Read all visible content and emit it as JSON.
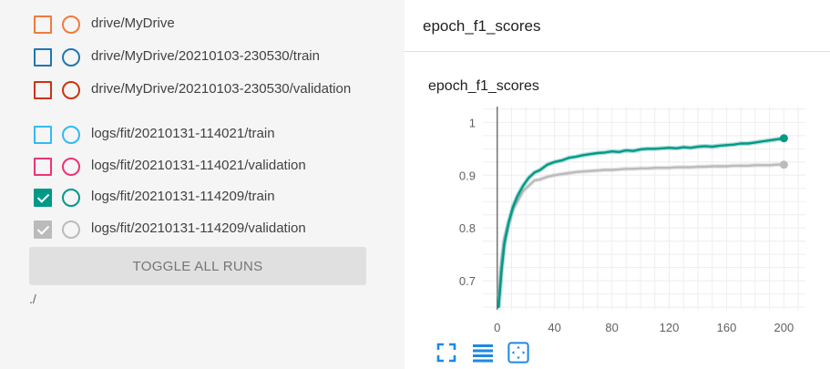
{
  "runs": [
    {
      "label": "drive/MyDrive",
      "color": "#f4793e",
      "checked": false
    },
    {
      "label": "drive/MyDrive/20210103-230530/train",
      "color": "#1f77b4",
      "checked": false
    },
    {
      "label": "drive/MyDrive/20210103-230530/validation",
      "color": "#cc3311",
      "checked": false
    },
    {
      "label": "logs/fit/20210131-114021/train",
      "color": "#33bbee",
      "checked": false
    },
    {
      "label": "logs/fit/20210131-114021/validation",
      "color": "#ee3377",
      "checked": false
    },
    {
      "label": "logs/fit/20210131-114209/train",
      "color": "#009988",
      "checked": true
    },
    {
      "label": "logs/fit/20210131-114209/validation",
      "color": "#bbbbbb",
      "checked": true
    }
  ],
  "toggle_label": "TOGGLE ALL RUNS",
  "path_label": "./",
  "card": {
    "title": "epoch_f1_scores"
  },
  "toolbar": {
    "fit_icon": "fullscreen-icon",
    "log_icon": "lines-icon",
    "domain_icon": "fit-domain-icon",
    "accent": "#1e88e5"
  },
  "chart_data": {
    "type": "line",
    "title": "epoch_f1_scores",
    "xlim": [
      -10,
      215
    ],
    "ylim": [
      0.645,
      1.03
    ],
    "xticks": [
      0,
      40,
      80,
      120,
      160,
      200
    ],
    "yticks": [
      0.7,
      0.8,
      0.9,
      1
    ],
    "grid": true,
    "series": [
      {
        "color": "#009988",
        "x": [
          1,
          3,
          5,
          8,
          11,
          14,
          18,
          22,
          26,
          30,
          35,
          40,
          45,
          50,
          55,
          60,
          65,
          70,
          75,
          80,
          85,
          90,
          95,
          100,
          105,
          110,
          115,
          120,
          125,
          130,
          135,
          140,
          145,
          150,
          155,
          160,
          165,
          170,
          175,
          180,
          185,
          190,
          195,
          200
        ],
        "y": [
          0.65,
          0.72,
          0.77,
          0.81,
          0.84,
          0.86,
          0.88,
          0.895,
          0.905,
          0.91,
          0.92,
          0.925,
          0.928,
          0.933,
          0.935,
          0.938,
          0.94,
          0.942,
          0.943,
          0.945,
          0.944,
          0.947,
          0.946,
          0.949,
          0.95,
          0.95,
          0.951,
          0.952,
          0.951,
          0.953,
          0.952,
          0.954,
          0.955,
          0.954,
          0.956,
          0.957,
          0.958,
          0.96,
          0.96,
          0.962,
          0.964,
          0.966,
          0.968,
          0.97
        ]
      },
      {
        "color": "#bbbbbb",
        "x": [
          1,
          3,
          5,
          8,
          11,
          14,
          18,
          22,
          26,
          30,
          35,
          40,
          45,
          50,
          55,
          60,
          65,
          70,
          75,
          80,
          85,
          90,
          95,
          100,
          105,
          110,
          115,
          120,
          125,
          130,
          135,
          140,
          145,
          150,
          155,
          160,
          165,
          170,
          175,
          180,
          185,
          190,
          195,
          200
        ],
        "y": [
          0.67,
          0.74,
          0.78,
          0.81,
          0.835,
          0.85,
          0.87,
          0.88,
          0.89,
          0.892,
          0.897,
          0.9,
          0.902,
          0.904,
          0.906,
          0.907,
          0.908,
          0.909,
          0.91,
          0.91,
          0.911,
          0.912,
          0.912,
          0.913,
          0.913,
          0.914,
          0.914,
          0.914,
          0.915,
          0.915,
          0.915,
          0.916,
          0.916,
          0.917,
          0.917,
          0.917,
          0.918,
          0.918,
          0.918,
          0.919,
          0.919,
          0.919,
          0.92,
          0.92
        ]
      }
    ]
  }
}
